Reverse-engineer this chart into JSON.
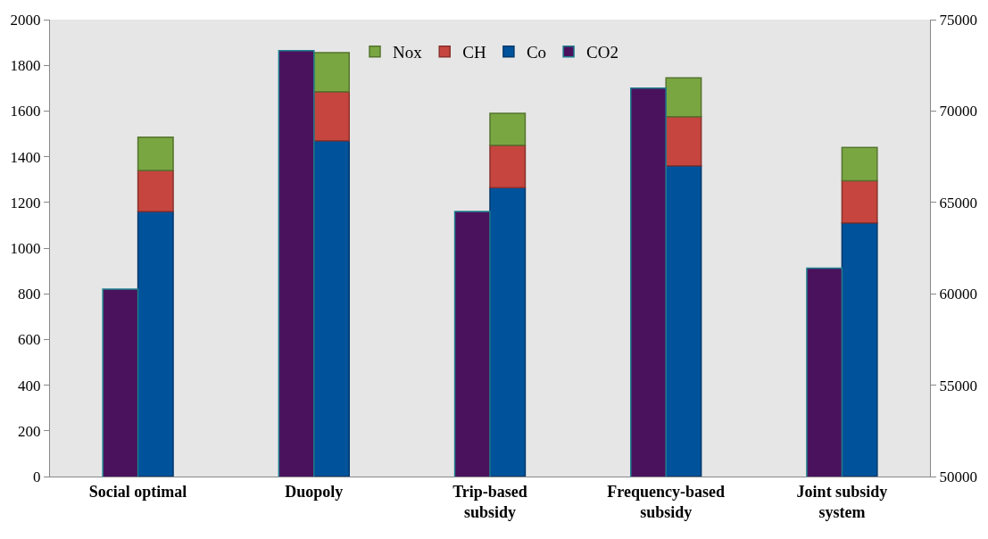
{
  "chart_data": {
    "type": "bar",
    "stacked": true,
    "categories": [
      "Social optimal",
      "Duopoly",
      "Trip-based subsidy",
      "Frequency-based subsidy",
      "Joint subsidy system"
    ],
    "series": [
      {
        "name": "Co",
        "color": "#00529b",
        "values": [
          1160,
          1470,
          1265,
          1360,
          1110
        ]
      },
      {
        "name": "CH",
        "color": "#c6463f",
        "values": [
          180,
          215,
          185,
          215,
          185
        ]
      },
      {
        "name": "Nox",
        "color": "#7aa642",
        "values": [
          145,
          170,
          140,
          170,
          145
        ]
      },
      {
        "name": "CO2",
        "color": "#4a125c",
        "axis": "y2",
        "values": [
          60250,
          73300,
          64500,
          71250,
          61400
        ]
      }
    ],
    "ylim": [
      0,
      2000
    ],
    "yticks": [
      0,
      200,
      400,
      600,
      800,
      1000,
      1200,
      1400,
      1600,
      1800,
      2000
    ],
    "y2lim": [
      50000,
      75000
    ],
    "y2ticks": [
      50000,
      55000,
      60000,
      65000,
      70000,
      75000
    ],
    "grid": false,
    "legend": "top"
  }
}
